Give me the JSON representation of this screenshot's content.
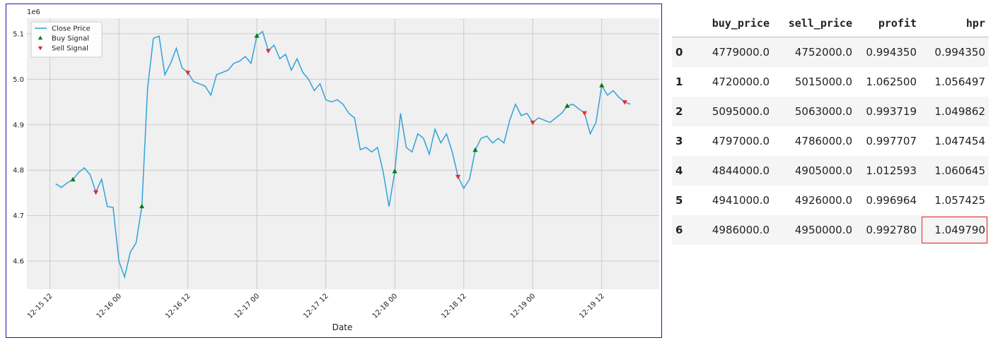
{
  "chart_data": {
    "type": "line",
    "offset_label": "1e6",
    "xlabel": "Date",
    "xlim": [
      "12-15 08",
      "12-19 22"
    ],
    "xticks": [
      "12-15 12",
      "12-16 00",
      "12-16 12",
      "12-17 00",
      "12-17 12",
      "12-18 00",
      "12-18 12",
      "12-19 00",
      "12-19 12"
    ],
    "ylim": [
      4538000,
      5134000
    ],
    "yticks": [
      {
        "value": 4600000,
        "label": "4.6"
      },
      {
        "value": 4700000,
        "label": "4.7"
      },
      {
        "value": 4800000,
        "label": "4.8"
      },
      {
        "value": 4900000,
        "label": "4.9"
      },
      {
        "value": 5000000,
        "label": "5.0"
      },
      {
        "value": 5100000,
        "label": "5.1"
      }
    ],
    "grid": true,
    "legend": "upper left",
    "series": [
      {
        "name": "Close Price",
        "color": "#30a2da",
        "marker": "line",
        "x": [
          "12-15 13",
          "12-15 14",
          "12-15 15",
          "12-15 16",
          "12-15 17",
          "12-15 18",
          "12-15 19",
          "12-15 20",
          "12-15 21",
          "12-15 22",
          "12-15 23",
          "12-16 00",
          "12-16 01",
          "12-16 02",
          "12-16 03",
          "12-16 04",
          "12-16 05",
          "12-16 06",
          "12-16 07",
          "12-16 08",
          "12-16 09",
          "12-16 10",
          "12-16 11",
          "12-16 12",
          "12-16 13",
          "12-16 14",
          "12-16 15",
          "12-16 16",
          "12-16 17",
          "12-16 18",
          "12-16 19",
          "12-16 20",
          "12-16 21",
          "12-16 22",
          "12-16 23",
          "12-17 00",
          "12-17 01",
          "12-17 02",
          "12-17 03",
          "12-17 04",
          "12-17 05",
          "12-17 06",
          "12-17 07",
          "12-17 08",
          "12-17 09",
          "12-17 10",
          "12-17 11",
          "12-17 12",
          "12-17 13",
          "12-17 14",
          "12-17 15",
          "12-17 16",
          "12-17 17",
          "12-17 18",
          "12-17 19",
          "12-17 20",
          "12-17 21",
          "12-17 22",
          "12-17 23",
          "12-18 00",
          "12-18 01",
          "12-18 02",
          "12-18 03",
          "12-18 04",
          "12-18 05",
          "12-18 06",
          "12-18 07",
          "12-18 08",
          "12-18 09",
          "12-18 10",
          "12-18 11",
          "12-18 12",
          "12-18 13",
          "12-18 14",
          "12-18 15",
          "12-18 16",
          "12-18 17",
          "12-18 18",
          "12-18 19",
          "12-18 20",
          "12-18 21",
          "12-18 22",
          "12-18 23",
          "12-19 00",
          "12-19 01",
          "12-19 02",
          "12-19 03",
          "12-19 04",
          "12-19 05",
          "12-19 06",
          "12-19 07",
          "12-19 08",
          "12-19 09",
          "12-19 10",
          "12-19 11",
          "12-19 12",
          "12-19 13",
          "12-19 14",
          "12-19 15",
          "12-19 16",
          "12-19 17"
        ],
        "values": [
          4770000,
          4762000,
          4772000,
          4779000,
          4795000,
          4805000,
          4790000,
          4752000,
          4780000,
          4720000,
          4718000,
          4600000,
          4565000,
          4620000,
          4640000,
          4720000,
          4980000,
          5090000,
          5095000,
          5010000,
          5035000,
          5068000,
          5025000,
          5015000,
          4995000,
          4990000,
          4985000,
          4965000,
          5010000,
          5015000,
          5020000,
          5035000,
          5040000,
          5050000,
          5035000,
          5095000,
          5105000,
          5063000,
          5075000,
          5045000,
          5055000,
          5020000,
          5045000,
          5015000,
          5000000,
          4975000,
          4990000,
          4955000,
          4950000,
          4955000,
          4945000,
          4925000,
          4915000,
          4845000,
          4850000,
          4840000,
          4850000,
          4795000,
          4720000,
          4797000,
          4925000,
          4850000,
          4840000,
          4880000,
          4870000,
          4835000,
          4890000,
          4860000,
          4880000,
          4840000,
          4786000,
          4760000,
          4780000,
          4844000,
          4870000,
          4875000,
          4860000,
          4870000,
          4860000,
          4910000,
          4945000,
          4920000,
          4925000,
          4905000,
          4915000,
          4910000,
          4905000,
          4915000,
          4925000,
          4941000,
          4945000,
          4935000,
          4926000,
          4880000,
          4905000,
          4986000,
          4965000,
          4975000,
          4960000,
          4950000,
          4945000
        ]
      },
      {
        "name": "Buy Signal",
        "color": "#008000",
        "marker": "^",
        "x": [
          "12-15 16",
          "12-16 04",
          "12-17 00",
          "12-18 00",
          "12-18 14",
          "12-19 06",
          "12-19 12"
        ],
        "values": [
          4779000,
          4720000,
          5095000,
          4797000,
          4844000,
          4941000,
          4986000
        ]
      },
      {
        "name": "Sell Signal",
        "color": "#e8272a",
        "marker": "v",
        "x": [
          "12-15 20",
          "12-16 12",
          "12-17 02",
          "12-18 11",
          "12-19 00",
          "12-19 09",
          "12-19 16"
        ],
        "values": [
          4752000,
          5015000,
          5063000,
          4786000,
          4905000,
          4926000,
          4950000
        ]
      }
    ]
  },
  "table": {
    "columns": [
      "buy_price",
      "sell_price",
      "profit",
      "hpr"
    ],
    "index": [
      0,
      1,
      2,
      3,
      4,
      5,
      6
    ],
    "rows": [
      [
        "4779000.0",
        "4752000.0",
        "0.994350",
        "0.994350"
      ],
      [
        "4720000.0",
        "5015000.0",
        "1.062500",
        "1.056497"
      ],
      [
        "5095000.0",
        "5063000.0",
        "0.993719",
        "1.049862"
      ],
      [
        "4797000.0",
        "4786000.0",
        "0.997707",
        "1.047454"
      ],
      [
        "4844000.0",
        "4905000.0",
        "1.012593",
        "1.060645"
      ],
      [
        "4941000.0",
        "4926000.0",
        "0.996964",
        "1.057425"
      ],
      [
        "4986000.0",
        "4950000.0",
        "0.992780",
        "1.049790"
      ]
    ],
    "highlight_cell": [
      6,
      3
    ]
  }
}
